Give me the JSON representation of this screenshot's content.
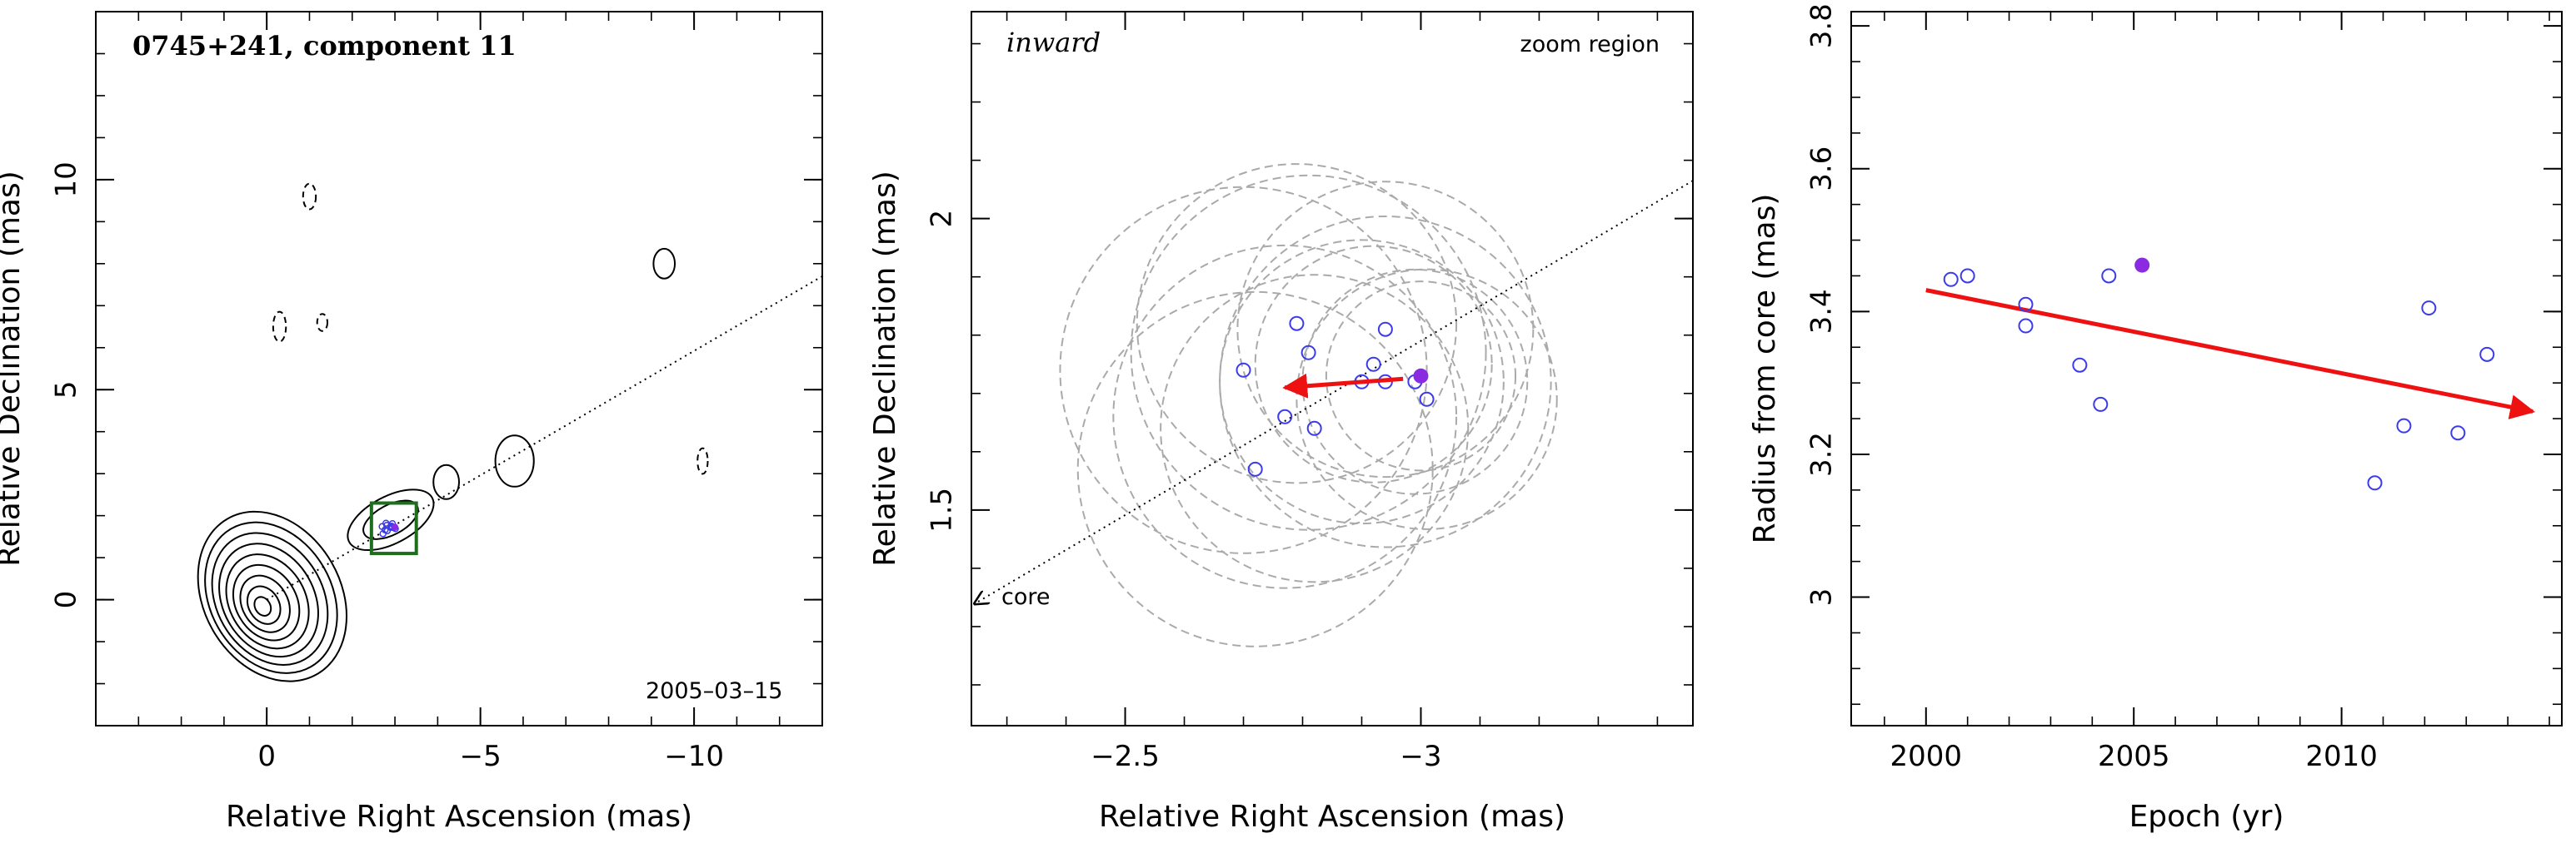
{
  "colors": {
    "frame": "#000000",
    "contour": "#000000",
    "box": "#1f6e1f",
    "circle": "#aaaaaa",
    "open_point": "#3b3bea",
    "filled_point": "#8a2be2",
    "arrow": "#ee1111"
  },
  "chart_data": [
    {
      "type": "contour",
      "title": "0745+241, component 11",
      "xlabel": "Relative Right Ascension (mas)",
      "ylabel": "Relative Declination (mas)",
      "xlim": [
        4,
        -13
      ],
      "ylim": [
        -3,
        14
      ],
      "x_ticks": [
        0,
        -5,
        -10
      ],
      "x_tick_labels": [
        "0",
        "−5",
        "−10"
      ],
      "y_ticks": [
        0,
        5,
        10
      ],
      "y_tick_labels": [
        "0",
        "5",
        "10"
      ],
      "date": "2005–03–15",
      "jet_axis": {
        "from": [
          0,
          0
        ],
        "to": [
          -13,
          7.7
        ],
        "style": "dotted"
      },
      "core_contour_count": 9,
      "feature_contours": [
        {
          "x": -4.2,
          "y": 2.8,
          "rx": 0.3,
          "ry": 0.4
        },
        {
          "x": -5.8,
          "y": 3.3,
          "rx": 0.45,
          "ry": 0.6
        },
        {
          "x": -9.3,
          "y": 8.0,
          "rx": 0.25,
          "ry": 0.35
        },
        {
          "x": -1.0,
          "y": 9.6,
          "rx": 0.15,
          "ry": 0.3,
          "dashed": true
        },
        {
          "x": -0.3,
          "y": 6.5,
          "rx": 0.15,
          "ry": 0.35,
          "dashed": true
        },
        {
          "x": -1.3,
          "y": 6.6,
          "rx": 0.12,
          "ry": 0.2,
          "dashed": true
        },
        {
          "x": -10.2,
          "y": 3.3,
          "rx": 0.12,
          "ry": 0.3,
          "dashed": true
        }
      ],
      "zoom_box": {
        "x": [
          -2.45,
          -3.5
        ],
        "y": [
          1.1,
          2.3
        ]
      }
    },
    {
      "type": "scatter",
      "title": "",
      "label_left": "inward",
      "label_right": "zoom region",
      "core_label": "core",
      "xlabel": "Relative Right Ascension (mas)",
      "ylabel": "Relative Declination (mas)",
      "xlim": [
        -2.24,
        -3.46
      ],
      "ylim": [
        1.13,
        2.355
      ],
      "x_ticks": [
        -2.5,
        -3
      ],
      "x_tick_labels": [
        "−2.5",
        "−3"
      ],
      "y_ticks": [
        1.5,
        2
      ],
      "y_tick_labels": [
        "1.5",
        "2"
      ],
      "points": [
        {
          "x": -2.79,
          "y": 1.82
        },
        {
          "x": -2.81,
          "y": 1.77
        },
        {
          "x": -2.94,
          "y": 1.81
        },
        {
          "x": -2.7,
          "y": 1.74
        },
        {
          "x": -2.92,
          "y": 1.75
        },
        {
          "x": -2.9,
          "y": 1.72
        },
        {
          "x": -2.94,
          "y": 1.72
        },
        {
          "x": -2.99,
          "y": 1.72
        },
        {
          "x": -3.01,
          "y": 1.69
        },
        {
          "x": -2.77,
          "y": 1.66
        },
        {
          "x": -2.82,
          "y": 1.64
        },
        {
          "x": -2.72,
          "y": 1.57
        }
      ],
      "highlight_point": {
        "x": -3.0,
        "y": 1.73
      },
      "motion_arrow": {
        "from": [
          -2.97,
          1.725
        ],
        "to": [
          -2.77,
          1.71
        ]
      },
      "error_circles": [
        {
          "x": -2.79,
          "y": 1.82,
          "r": 0.27
        },
        {
          "x": -2.81,
          "y": 1.77,
          "r": 0.3
        },
        {
          "x": -2.94,
          "y": 1.81,
          "r": 0.25
        },
        {
          "x": -2.7,
          "y": 1.74,
          "r": 0.31
        },
        {
          "x": -2.92,
          "y": 1.75,
          "r": 0.2
        },
        {
          "x": -2.9,
          "y": 1.72,
          "r": 0.24
        },
        {
          "x": -2.94,
          "y": 1.72,
          "r": 0.28
        },
        {
          "x": -2.99,
          "y": 1.72,
          "r": 0.19
        },
        {
          "x": -3.01,
          "y": 1.69,
          "r": 0.22
        },
        {
          "x": -2.77,
          "y": 1.66,
          "r": 0.29
        },
        {
          "x": -2.82,
          "y": 1.64,
          "r": 0.26
        },
        {
          "x": -2.72,
          "y": 1.57,
          "r": 0.3
        },
        {
          "x": -3.0,
          "y": 1.73,
          "r": 0.16
        }
      ],
      "jet_axis": {
        "from": [
          -2.24,
          1.335
        ],
        "to": [
          -3.46,
          2.065
        ],
        "style": "dotted"
      }
    },
    {
      "type": "scatter",
      "title": "",
      "xlabel": "Epoch (yr)",
      "ylabel": "Radius from core (mas)",
      "xlim": [
        1998.2,
        2015.3
      ],
      "ylim": [
        2.82,
        3.82
      ],
      "x_ticks": [
        2000,
        2005,
        2010
      ],
      "x_tick_labels": [
        "2000",
        "2005",
        "2010"
      ],
      "y_ticks": [
        3,
        3.2,
        3.4,
        3.6,
        3.8
      ],
      "y_tick_labels": [
        "3",
        "3.2",
        "3.4",
        "3.6",
        "3.8"
      ],
      "points": [
        {
          "x": 2000.6,
          "y": 3.445
        },
        {
          "x": 2001.0,
          "y": 3.45
        },
        {
          "x": 2002.4,
          "y": 3.41
        },
        {
          "x": 2002.4,
          "y": 3.38
        },
        {
          "x": 2003.7,
          "y": 3.325
        },
        {
          "x": 2004.2,
          "y": 3.27
        },
        {
          "x": 2004.4,
          "y": 3.45
        },
        {
          "x": 2010.8,
          "y": 3.16
        },
        {
          "x": 2011.5,
          "y": 3.24
        },
        {
          "x": 2012.1,
          "y": 3.405
        },
        {
          "x": 2012.8,
          "y": 3.23
        },
        {
          "x": 2013.5,
          "y": 3.34
        }
      ],
      "highlight_point": {
        "x": 2005.2,
        "y": 3.465
      },
      "trend_arrow": {
        "from": [
          2000,
          3.43
        ],
        "to": [
          2014.6,
          3.26
        ]
      }
    }
  ]
}
